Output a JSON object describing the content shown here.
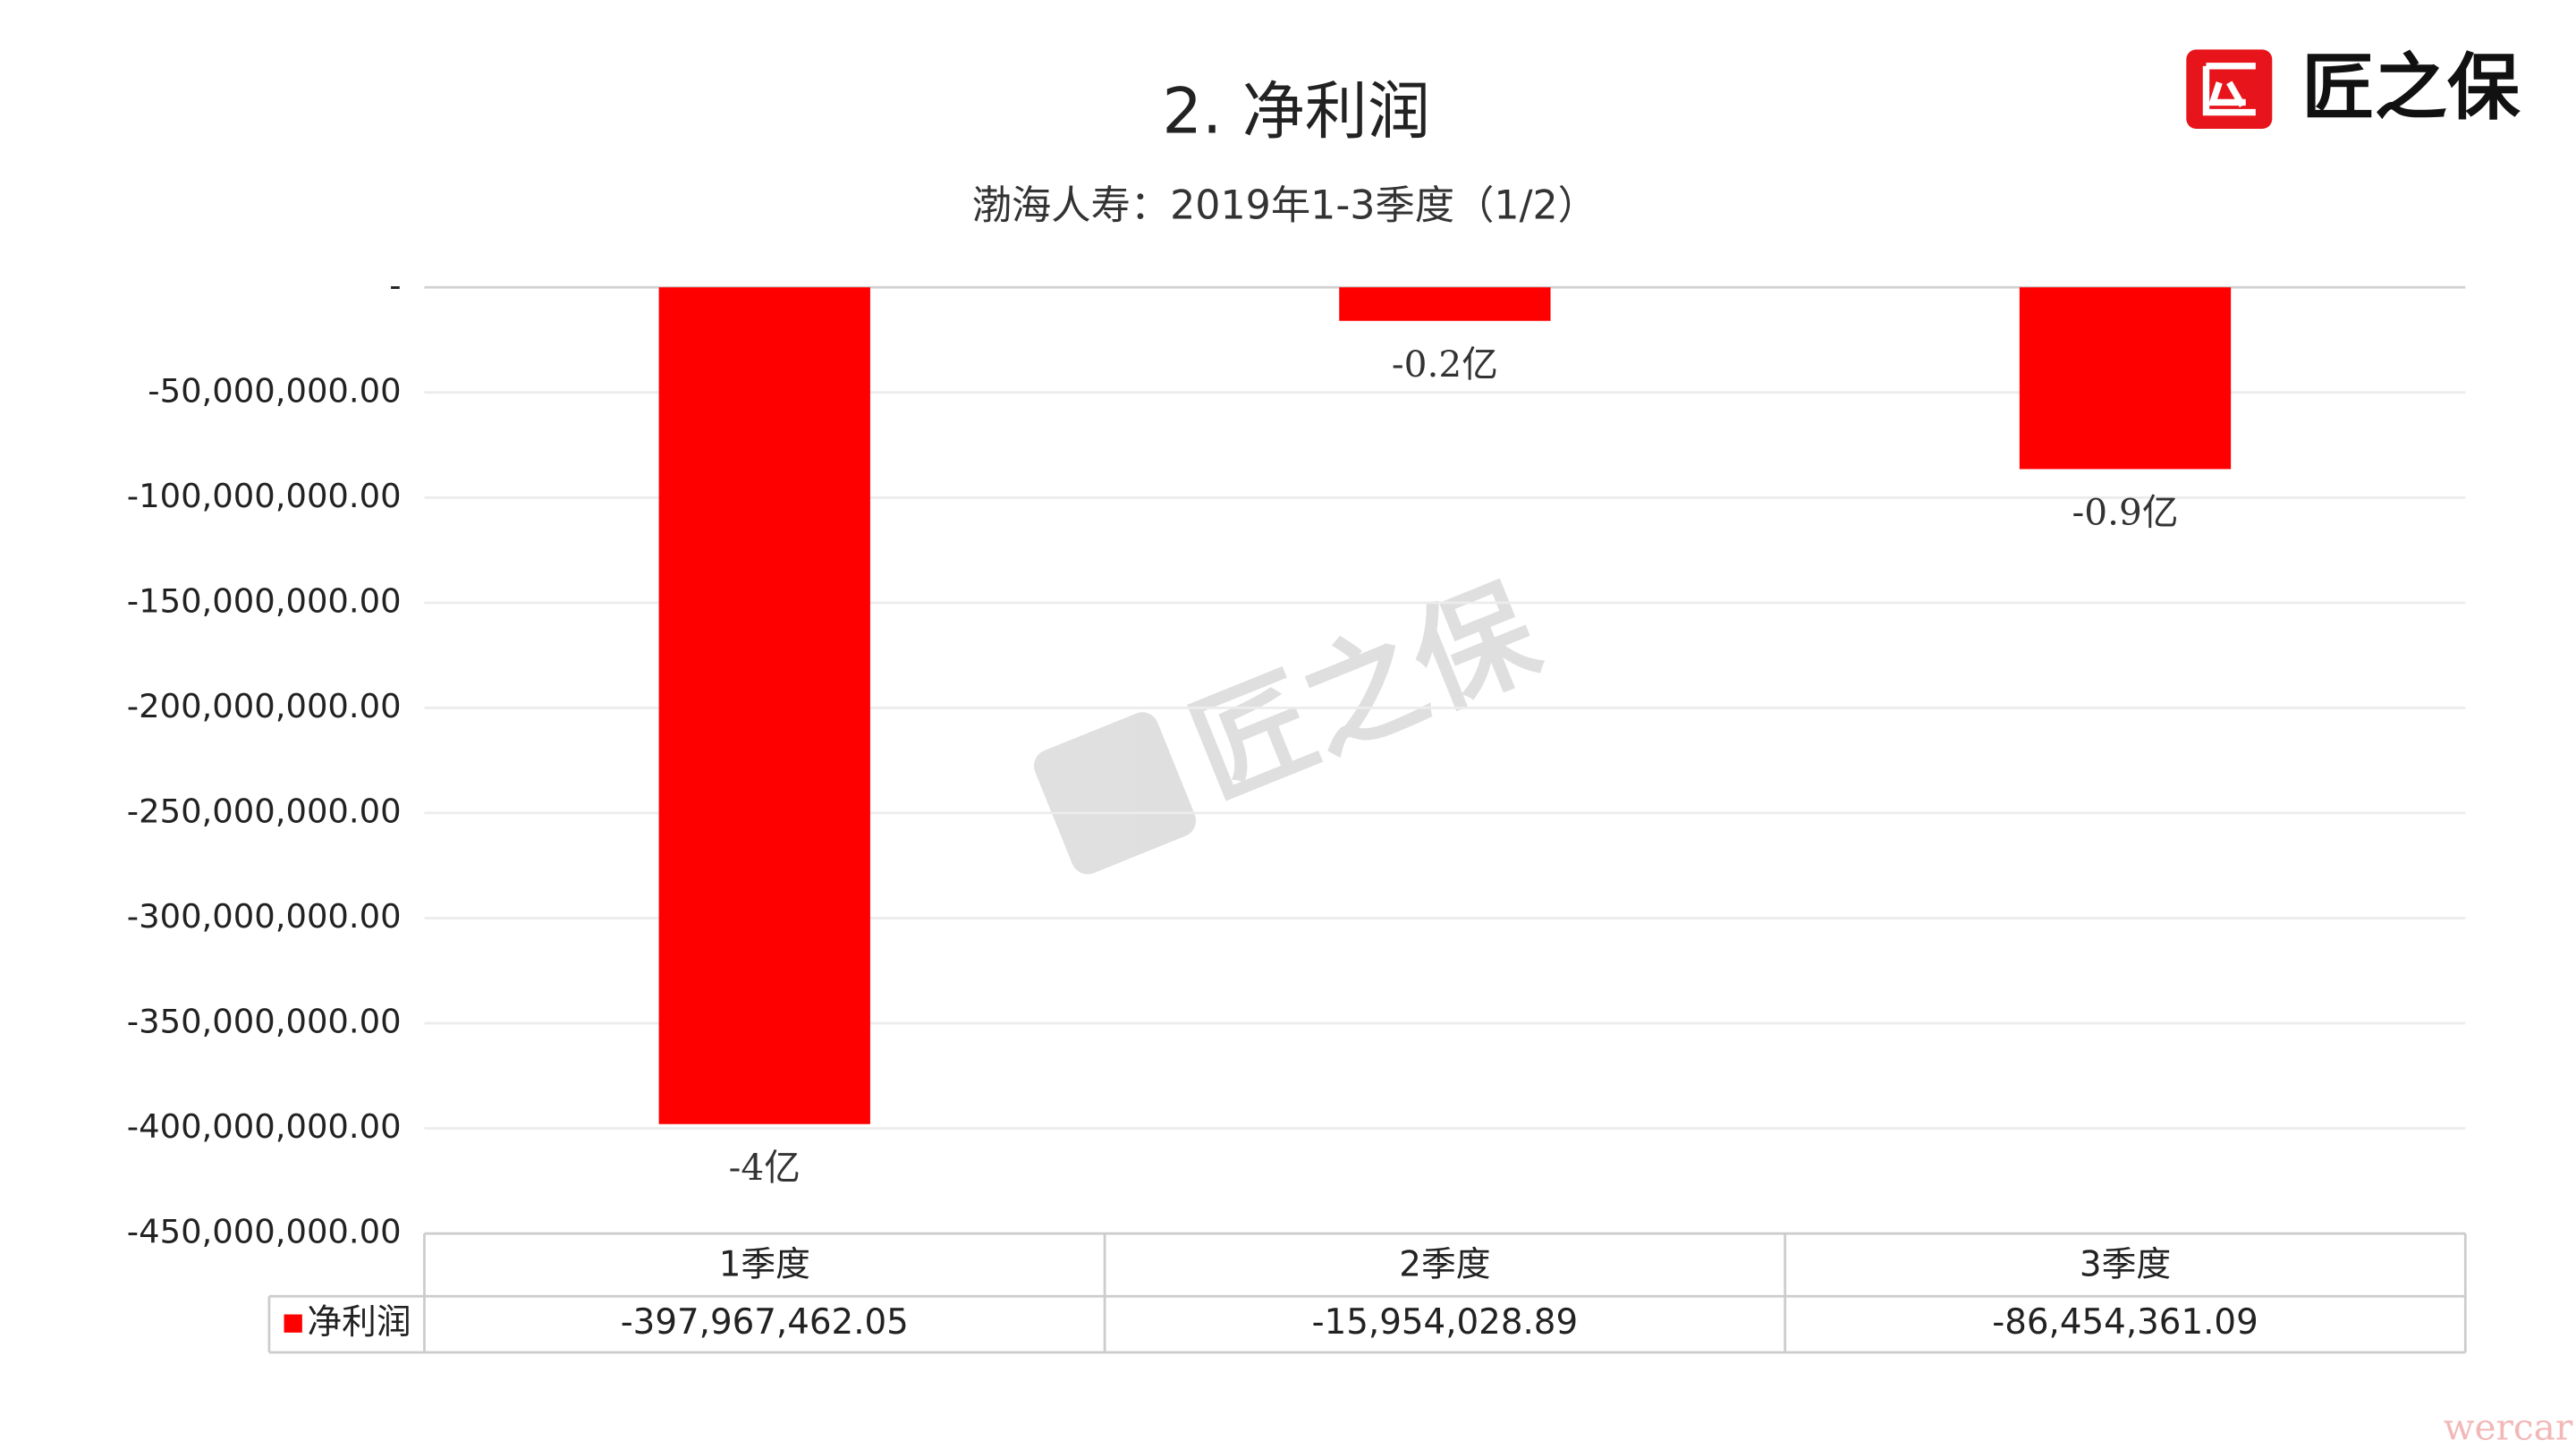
{
  "logo_text": "匠之保",
  "corner_watermark": "wercar",
  "chart_data": {
    "type": "bar",
    "title": "2.  净利润",
    "subtitle": "渤海人寿：2019年1-3季度（1/2）",
    "categories": [
      "1季度",
      "2季度",
      "3季度"
    ],
    "series": [
      {
        "name": "净利润",
        "color": "#ff0000",
        "values": [
          -397967462.05,
          -15954028.89,
          -86454361.09
        ],
        "value_labels": [
          "-4亿",
          "-0.2亿",
          "-0.9亿"
        ],
        "table_labels": [
          "-397,967,462.05",
          "-15,954,028.89",
          "-86,454,361.09"
        ]
      }
    ],
    "ylim": [
      -450000000,
      0
    ],
    "yticks": [
      {
        "value": 0,
        "label": "-"
      },
      {
        "value": -50000000,
        "label": "-50,000,000.00"
      },
      {
        "value": -100000000,
        "label": "-100,000,000.00"
      },
      {
        "value": -150000000,
        "label": "-150,000,000.00"
      },
      {
        "value": -200000000,
        "label": "-200,000,000.00"
      },
      {
        "value": -250000000,
        "label": "-250,000,000.00"
      },
      {
        "value": -300000000,
        "label": "-300,000,000.00"
      },
      {
        "value": -350000000,
        "label": "-350,000,000.00"
      },
      {
        "value": -400000000,
        "label": "-400,000,000.00"
      },
      {
        "value": -450000000,
        "label": "-450,000,000.00"
      }
    ],
    "grid": true,
    "legend": "data-table"
  }
}
